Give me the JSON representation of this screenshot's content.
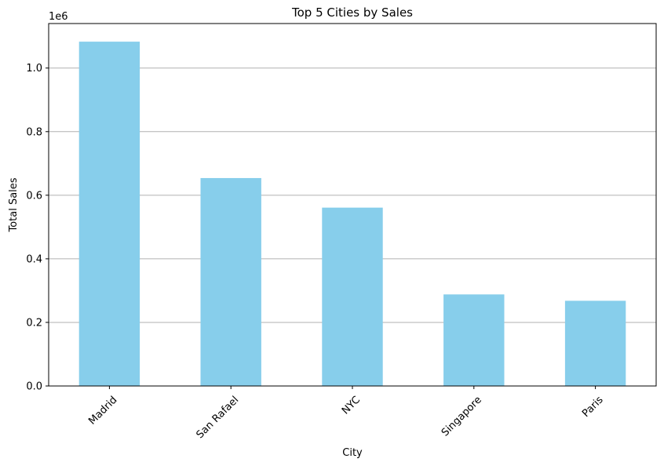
{
  "chart_data": {
    "type": "bar",
    "title": "Top 5 Cities by Sales",
    "xlabel": "City",
    "ylabel": "Total Sales",
    "scale_label": "1e6",
    "categories": [
      "Madrid",
      "San Rafael",
      "NYC",
      "Singapore",
      "Paris"
    ],
    "values": [
      1083000,
      654000,
      561000,
      288000,
      268000
    ],
    "ylim": [
      0,
      1140000
    ],
    "yticks": [
      0,
      200000,
      400000,
      600000,
      800000,
      1000000
    ],
    "ytick_labels": [
      "0.0",
      "0.2",
      "0.4",
      "0.6",
      "0.8",
      "1.0"
    ],
    "grid": "y",
    "bar_color": "#87CEEB",
    "grid_color": "#b0b0b0",
    "xtick_rotation": "45deg"
  }
}
